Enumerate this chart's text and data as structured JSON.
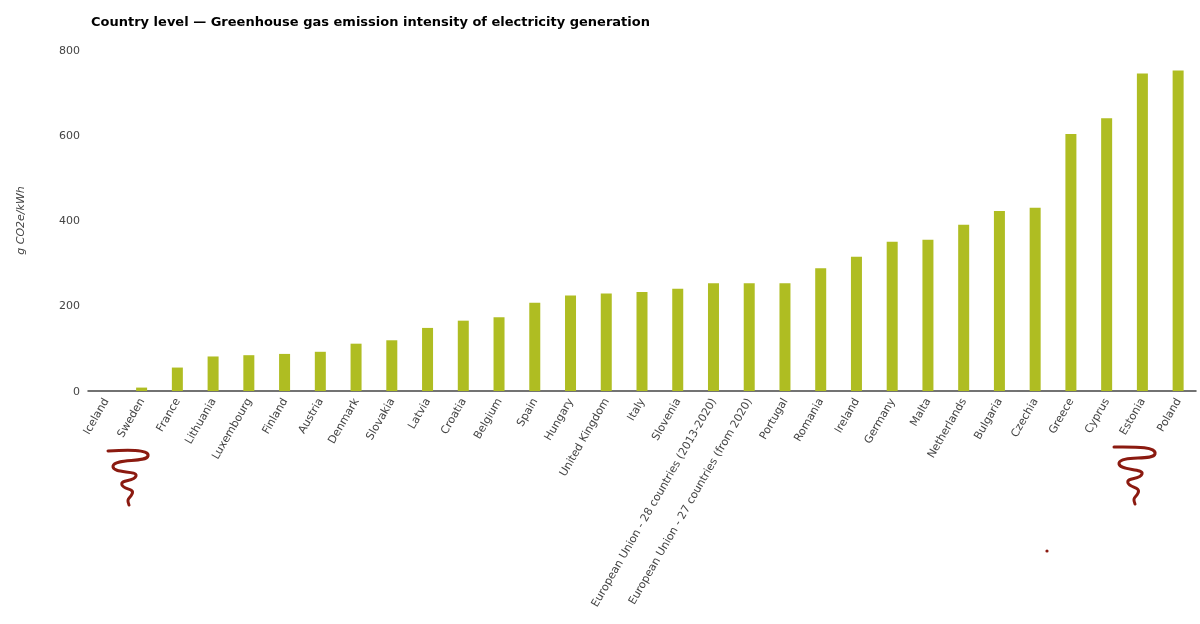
{
  "chart_data": {
    "type": "bar",
    "title": "Country level — Greenhouse gas emission intensity of electricity generation",
    "ylabel": "g CO2e/kWh",
    "categories": [
      "Iceland",
      "Sweden",
      "France",
      "Lithuania",
      "Luxembourg",
      "Finland",
      "Austria",
      "Denmark",
      "Slovakia",
      "Latvia",
      "Croatia",
      "Belgium",
      "Spain",
      "Hungary",
      "United Kingdom",
      "Italy",
      "Slovenia",
      "European Union - 28 countries (2013-2020)",
      "European Union - 27 countries (from 2020)",
      "Portugal",
      "Romania",
      "Ireland",
      "Germany",
      "Malta",
      "Netherlands",
      "Bulgaria",
      "Czechia",
      "Greece",
      "Cyprus",
      "Estonia",
      "Poland"
    ],
    "values": [
      0,
      8,
      55,
      81,
      84,
      87,
      92,
      111,
      119,
      148,
      165,
      173,
      207,
      224,
      229,
      232,
      240,
      253,
      253,
      253,
      288,
      315,
      350,
      355,
      390,
      422,
      430,
      603,
      640,
      745,
      752
    ],
    "color": "#afbd22",
    "ylim": [
      0,
      800
    ],
    "yticks": [
      0,
      200,
      400,
      600,
      800
    ],
    "grid": false
  }
}
